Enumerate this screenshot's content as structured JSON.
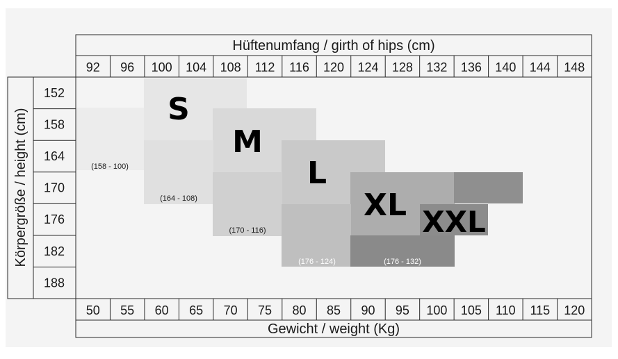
{
  "chart_data": {
    "type": "heatmap",
    "top_axis_label": "Hüftenumfang  /  girth of hips  (cm)",
    "bottom_axis_label": "Gewicht  /  weight  (Kg)",
    "left_axis_label": "Körpergröße  /  height  (cm)",
    "top_ticks": [
      "92",
      "96",
      "100",
      "104",
      "108",
      "112",
      "116",
      "120",
      "124",
      "128",
      "132",
      "136",
      "140",
      "144",
      "148"
    ],
    "bottom_ticks": [
      "50",
      "55",
      "60",
      "65",
      "70",
      "75",
      "80",
      "85",
      "90",
      "95",
      "100",
      "105",
      "110",
      "115",
      "120"
    ],
    "left_ticks": [
      "152",
      "158",
      "164",
      "170",
      "176",
      "182",
      "188"
    ],
    "sizes": [
      {
        "name": "S",
        "color": "#e8e8e8",
        "weight_range": [
          60,
          70
        ],
        "height_range": [
          152,
          158
        ]
      },
      {
        "name": "M",
        "color": "#dadada",
        "weight_range": [
          70,
          85
        ],
        "height_range": [
          158,
          164
        ]
      },
      {
        "name": "L",
        "color": "#cbcbcb",
        "weight_range": [
          80,
          95
        ],
        "height_range": [
          164,
          170
        ]
      },
      {
        "name": "XL",
        "color": "#acacac",
        "weight_range": [
          90,
          105
        ],
        "height_range": [
          170,
          176
        ]
      },
      {
        "name": "XXL",
        "color": "#8e8e8e",
        "weight_range": [
          100,
          110
        ],
        "height_range": [
          176,
          179
        ]
      }
    ],
    "range_labels": [
      "(158 - 100)",
      "(164 - 108)",
      "(170 - 116)",
      "(176 - 124)",
      "(176 - 132)"
    ]
  }
}
